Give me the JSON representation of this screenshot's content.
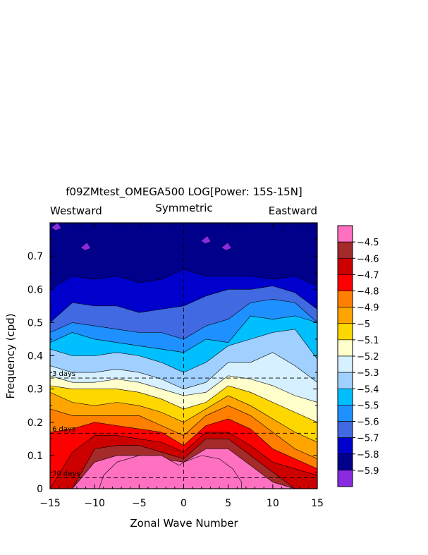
{
  "chart_data": {
    "type": "heatmap",
    "title": "f09ZMtest_OMEGA500 LOG[Power: 15S-15N]",
    "subtitle_left": "Westward",
    "subtitle_center": "Symmetric",
    "subtitle_right": "Eastward",
    "xlabel": "Zonal Wave Number",
    "ylabel": "Frequency (cpd)",
    "xlim": [
      -15,
      15
    ],
    "ylim": [
      0,
      0.8
    ],
    "x_ticks": [
      -15,
      -10,
      -5,
      0,
      5,
      10,
      15
    ],
    "x_tick_labels": [
      "−15",
      "−10",
      "−5",
      "0",
      "5",
      "10",
      "15"
    ],
    "y_ticks": [
      0,
      0.1,
      0.2,
      0.3,
      0.4,
      0.5,
      0.6,
      0.7
    ],
    "y_tick_labels": [
      "0",
      "0.1",
      "0.2",
      "0.3",
      "0.4",
      "0.5",
      "0.6",
      "0.7"
    ],
    "period_lines": [
      {
        "label": "3 days",
        "frequency": 0.333
      },
      {
        "label": "6 days",
        "frequency": 0.167
      },
      {
        "label": "30 days",
        "frequency": 0.033
      }
    ],
    "colorbar_levels": [
      "−4.5",
      "−4.6",
      "−4.7",
      "−4.8",
      "−4.9",
      "−5",
      "−5.1",
      "−5.2",
      "−5.3",
      "−5.4",
      "−5.5",
      "−5.6",
      "−5.7",
      "−5.8",
      "−5.9"
    ],
    "colorbar_colors": [
      "#ff70c0",
      "#a52a2a",
      "#cd0000",
      "#ff0000",
      "#ff7f00",
      "#ffa500",
      "#ffd700",
      "#ffffcc",
      "#d6f0ff",
      "#a0d0ff",
      "#00bfff",
      "#1e90ff",
      "#4169e1",
      "#0000cd",
      "#00008b",
      "#8a2be2"
    ],
    "contour_levels": [
      -5.9,
      -5.8,
      -5.7,
      -5.6,
      -5.5,
      -5.4,
      -5.3,
      -5.2,
      -5.1,
      -5.0,
      -4.9,
      -4.8,
      -4.7,
      -4.6,
      -4.5
    ],
    "band_colors_low_to_high": [
      "#00008b",
      "#0000cd",
      "#4169e1",
      "#1e90ff",
      "#00bfff",
      "#a0d0ff",
      "#d6f0ff",
      "#ffffcc",
      "#ffd700",
      "#ffa500",
      "#ff7f00",
      "#ff0000",
      "#cd0000",
      "#a52a2a",
      "#ff70c0"
    ],
    "contours_x": [
      -15,
      -12.5,
      -10,
      -7.5,
      -5,
      -2.5,
      0,
      2.5,
      5,
      7.5,
      10,
      12.5,
      15
    ],
    "contours_freq": [
      [
        0.6,
        0.64,
        0.63,
        0.64,
        0.62,
        0.63,
        0.66,
        0.64,
        0.64,
        0.64,
        0.63,
        0.64,
        0.61
      ],
      [
        0.5,
        0.56,
        0.55,
        0.55,
        0.53,
        0.54,
        0.55,
        0.58,
        0.6,
        0.6,
        0.61,
        0.59,
        0.54
      ],
      [
        0.47,
        0.5,
        0.49,
        0.48,
        0.47,
        0.47,
        0.45,
        0.49,
        0.51,
        0.56,
        0.57,
        0.56,
        0.5
      ],
      [
        0.44,
        0.47,
        0.45,
        0.44,
        0.43,
        0.42,
        0.41,
        0.45,
        0.44,
        0.52,
        0.51,
        0.52,
        0.5
      ],
      [
        0.42,
        0.4,
        0.4,
        0.41,
        0.4,
        0.38,
        0.35,
        0.38,
        0.43,
        0.45,
        0.47,
        0.48,
        0.39
      ],
      [
        0.37,
        0.35,
        0.35,
        0.36,
        0.35,
        0.33,
        0.3,
        0.32,
        0.38,
        0.38,
        0.41,
        0.37,
        0.32
      ],
      [
        0.34,
        0.32,
        0.32,
        0.33,
        0.32,
        0.3,
        0.28,
        0.29,
        0.34,
        0.33,
        0.31,
        0.28,
        0.26
      ],
      [
        0.31,
        0.3,
        0.3,
        0.3,
        0.29,
        0.27,
        0.24,
        0.26,
        0.31,
        0.29,
        0.26,
        0.23,
        0.2
      ],
      [
        0.29,
        0.26,
        0.25,
        0.26,
        0.25,
        0.23,
        0.2,
        0.24,
        0.28,
        0.25,
        0.21,
        0.17,
        0.14
      ],
      [
        0.24,
        0.22,
        0.22,
        0.22,
        0.22,
        0.19,
        0.16,
        0.22,
        0.25,
        0.22,
        0.17,
        0.12,
        0.09
      ],
      [
        0.17,
        0.18,
        0.2,
        0.19,
        0.18,
        0.17,
        0.13,
        0.19,
        0.21,
        0.18,
        0.12,
        0.09,
        0.06
      ],
      [
        0.0,
        0.11,
        0.16,
        0.16,
        0.15,
        0.14,
        0.11,
        0.17,
        0.17,
        0.13,
        0.08,
        0.06,
        0.04
      ],
      [
        0.0,
        0.0,
        0.12,
        0.13,
        0.13,
        0.11,
        0.09,
        0.15,
        0.15,
        0.1,
        0.05,
        0.0,
        0.0
      ],
      [
        0.0,
        0.0,
        0.08,
        0.1,
        0.1,
        0.09,
        0.08,
        0.12,
        0.12,
        0.07,
        0.02,
        0.0,
        0.0
      ]
    ],
    "pink_region_points": [
      [
        -9.5,
        0
      ],
      [
        -9.0,
        0.04
      ],
      [
        -7.5,
        0.08
      ],
      [
        -5,
        0.1
      ],
      [
        -2.5,
        0.1
      ],
      [
        -0.5,
        0.07
      ],
      [
        0,
        0.08
      ],
      [
        2,
        0.1
      ],
      [
        4,
        0.09
      ],
      [
        5.5,
        0.06
      ],
      [
        6.5,
        0.02
      ],
      [
        6.5,
        0
      ]
    ],
    "purple_specks": [
      [
        -14.3,
        0.79
      ],
      [
        -11.0,
        0.73
      ],
      [
        2.5,
        0.75
      ],
      [
        4.8,
        0.73
      ]
    ],
    "grid": false,
    "legend": "right"
  }
}
